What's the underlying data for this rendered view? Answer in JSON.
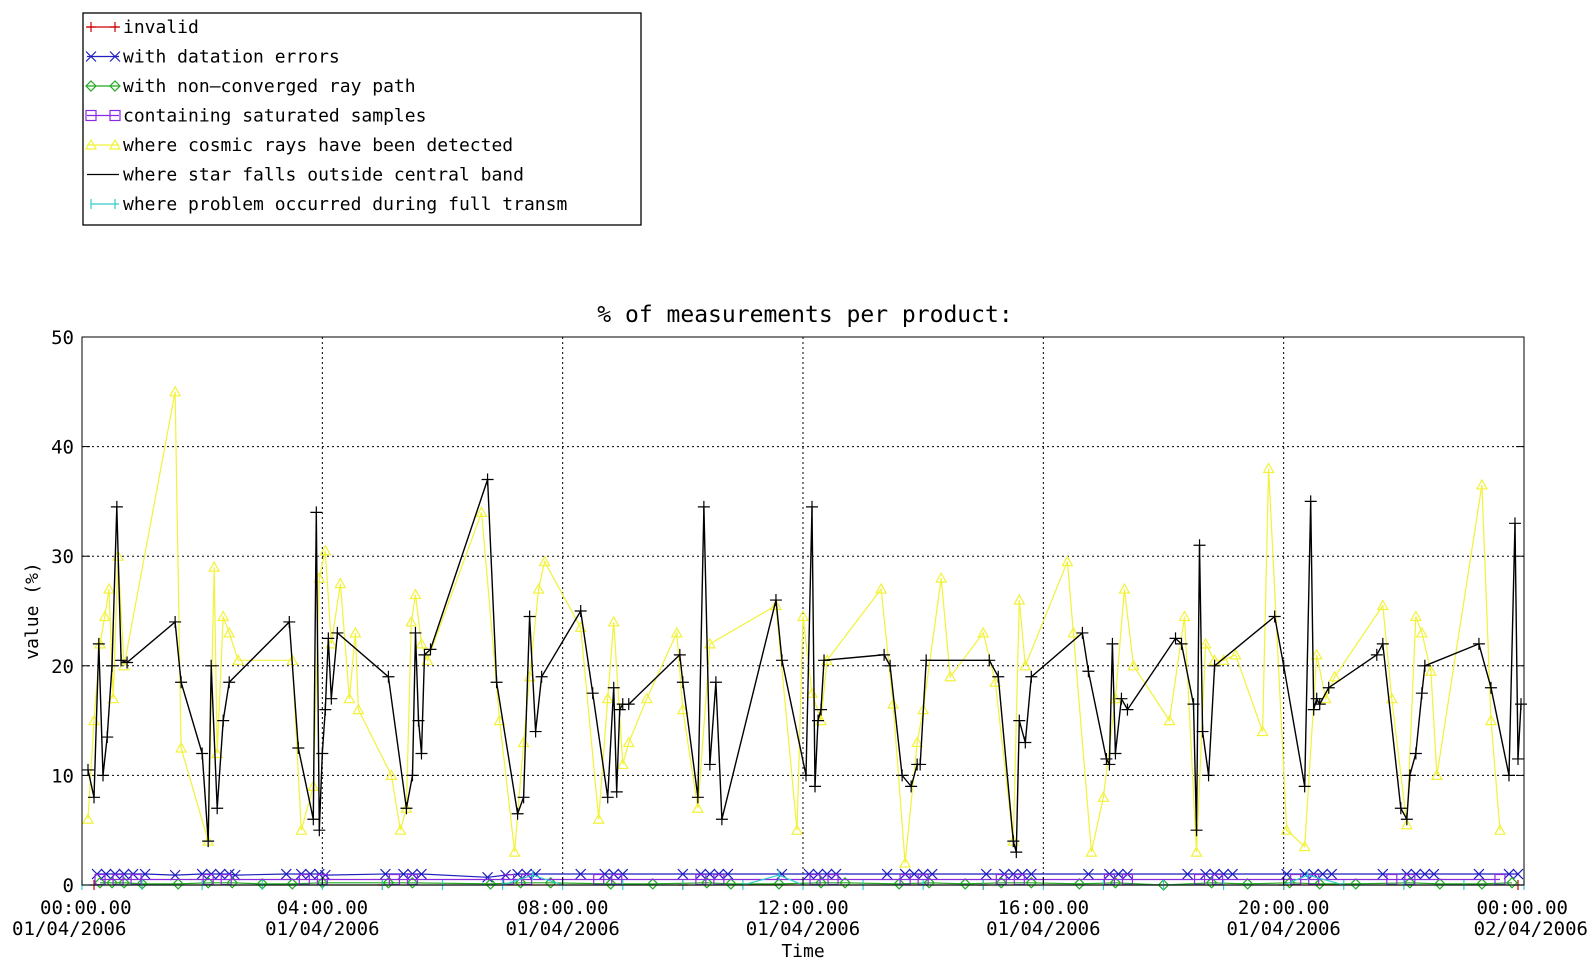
{
  "chart_data": {
    "type": "line",
    "title": "% of measurements per product:",
    "xlabel": "Time",
    "ylabel": "value (%)",
    "ylim": [
      0,
      50
    ],
    "xlim": [
      "01/04/2006 00:00:00",
      "02/04/2006 00:00:00"
    ],
    "x_units": "hours",
    "y_ticks": [
      0,
      10,
      20,
      30,
      40,
      50
    ],
    "x_ticks": [
      {
        "time": "00:00.00",
        "date": "01/04/2006"
      },
      {
        "time": "04:00.00",
        "date": "01/04/2006"
      },
      {
        "time": "08:00.00",
        "date": "01/04/2006"
      },
      {
        "time": "12:00.00",
        "date": "01/04/2006"
      },
      {
        "time": "16:00.00",
        "date": "01/04/2006"
      },
      {
        "time": "20:00.00",
        "date": "01/04/2006"
      },
      {
        "time": "00:00.00",
        "date": "02/04/2006"
      }
    ],
    "grid": {
      "vertical": "dotted",
      "horizontal": "dotted"
    },
    "legend_position": "top-left",
    "series": [
      {
        "name": "invalid",
        "color": "#cc0000",
        "marker": "plus",
        "x": [
          0.2,
          5.0,
          10.0,
          15.0,
          20.0,
          23.9
        ],
        "values": [
          0,
          0,
          0,
          0,
          0,
          0
        ]
      },
      {
        "name": "with datation errors",
        "color": "#1f1fbf",
        "marker": "x",
        "x": [
          0.25,
          0.4,
          0.55,
          0.7,
          0.85,
          1.05,
          1.55,
          2.0,
          2.15,
          2.3,
          2.45,
          2.55,
          3.4,
          3.65,
          3.8,
          3.95,
          4.05,
          5.05,
          5.35,
          5.5,
          5.65,
          6.75,
          7.05,
          7.25,
          7.4,
          7.55,
          8.3,
          8.7,
          8.85,
          9.0,
          10.0,
          10.3,
          10.45,
          10.6,
          10.75,
          11.65,
          12.1,
          12.25,
          12.4,
          12.55,
          13.4,
          13.7,
          13.85,
          14.0,
          14.15,
          15.05,
          15.35,
          15.5,
          15.65,
          15.8,
          16.75,
          17.1,
          17.25,
          17.4,
          18.4,
          18.7,
          18.85,
          19.0,
          19.15,
          20.05,
          20.35,
          20.5,
          20.65,
          20.8,
          21.65,
          22.05,
          22.2,
          22.35,
          22.5,
          23.25,
          23.75,
          23.9
        ],
        "values": [
          1,
          1,
          1,
          1,
          1,
          1,
          0.9,
          1,
          1,
          1,
          1,
          0.9,
          1,
          1,
          1,
          1,
          0.9,
          1,
          1,
          1,
          1,
          0.7,
          0.9,
          1,
          1,
          1,
          1,
          1,
          1,
          1,
          1,
          1,
          1,
          1,
          1,
          1,
          1,
          1,
          1,
          1,
          1,
          1,
          1,
          1,
          1,
          1,
          1,
          1,
          1,
          1,
          1,
          1,
          1,
          1,
          1,
          1,
          1,
          1,
          1,
          1,
          1,
          1,
          1,
          1,
          1,
          1,
          1,
          1,
          1,
          1,
          1,
          1
        ]
      },
      {
        "name": "with non–converged ray path",
        "color": "#22aa22",
        "marker": "diamond",
        "x": [
          0.3,
          0.5,
          0.7,
          1.0,
          1.6,
          2.1,
          2.5,
          3.0,
          3.5,
          4.0,
          5.1,
          5.5,
          6.8,
          7.3,
          7.8,
          8.8,
          9.5,
          10.4,
          10.8,
          11.6,
          12.3,
          12.7,
          13.6,
          14.1,
          14.7,
          15.3,
          15.8,
          16.6,
          17.2,
          18.0,
          18.8,
          19.4,
          20.1,
          20.6,
          21.2,
          22.1,
          22.6,
          23.3,
          23.8
        ],
        "values": [
          0.2,
          0.2,
          0.2,
          0.1,
          0.1,
          0.2,
          0.2,
          0.1,
          0.1,
          0.2,
          0.2,
          0.2,
          0.1,
          0.2,
          0.2,
          0.1,
          0.1,
          0.2,
          0.1,
          0.1,
          0.2,
          0.2,
          0.1,
          0.2,
          0.1,
          0.2,
          0.2,
          0.1,
          0.2,
          0,
          0.2,
          0.1,
          0.2,
          0.1,
          0.1,
          0.2,
          0.1,
          0.1,
          0.2
        ]
      },
      {
        "name": "containing saturated samples",
        "color": "#8a2be2",
        "marker": "square",
        "x": [
          0.3,
          0.6,
          0.9,
          2.1,
          2.4,
          3.7,
          4.0,
          5.2,
          5.5,
          7.1,
          7.4,
          8.6,
          8.9,
          10.3,
          10.6,
          12.2,
          12.5,
          13.7,
          14.0,
          15.3,
          15.6,
          17.1,
          17.4,
          18.6,
          18.9,
          20.2,
          20.5,
          21.8,
          22.1,
          23.6
        ],
        "values": [
          0.5,
          0.5,
          0.5,
          0.5,
          0.5,
          0.5,
          0.5,
          0.5,
          0.5,
          0.5,
          0.5,
          0.5,
          0.5,
          0.5,
          0.5,
          0.5,
          0.5,
          0.5,
          0.5,
          0.5,
          0.5,
          0.5,
          0.5,
          0.5,
          0.5,
          0.5,
          0.5,
          0.5,
          0.5,
          0.5
        ]
      },
      {
        "name": "where cosmic rays have been detected",
        "color": "#f2f23a",
        "marker": "triangle",
        "x": [
          0.1,
          0.2,
          0.3,
          0.38,
          0.45,
          0.52,
          0.6,
          0.7,
          1.55,
          1.65,
          2.1,
          2.2,
          2.25,
          2.35,
          2.45,
          2.6,
          3.5,
          3.65,
          3.85,
          3.95,
          4.05,
          4.15,
          4.3,
          4.45,
          4.55,
          4.6,
          5.15,
          5.3,
          5.4,
          5.48,
          5.55,
          5.65,
          5.75,
          6.65,
          6.95,
          7.2,
          7.35,
          7.45,
          7.6,
          7.7,
          8.3,
          8.6,
          8.75,
          8.85,
          9.0,
          9.1,
          9.4,
          9.9,
          10.0,
          10.25,
          10.45,
          11.55,
          11.9,
          12.0,
          12.15,
          12.3,
          12.4,
          13.3,
          13.5,
          13.7,
          13.9,
          14.0,
          14.3,
          14.45,
          15.0,
          15.2,
          15.5,
          15.6,
          15.7,
          16.4,
          16.5,
          16.8,
          17.0,
          17.2,
          17.35,
          17.5,
          18.1,
          18.35,
          18.55,
          18.7,
          18.85,
          19.0,
          19.2,
          19.65,
          19.75,
          20.05,
          20.35,
          20.55,
          20.7,
          20.85,
          21.65,
          21.8,
          22.05,
          22.2,
          22.3,
          22.45,
          22.55,
          23.3,
          23.45,
          23.6
        ],
        "values": [
          6,
          15,
          22,
          24.5,
          27,
          17,
          30,
          20,
          45,
          12.5,
          4,
          29,
          12,
          24.5,
          23,
          20.5,
          20.5,
          5,
          9,
          28,
          30.5,
          22,
          27.5,
          17,
          23,
          16,
          10,
          5,
          7,
          24,
          26.5,
          22,
          20.5,
          34,
          15,
          3,
          13,
          19,
          27,
          29.5,
          23.5,
          6,
          17,
          24,
          11,
          13,
          17,
          23,
          16,
          7,
          22,
          25.5,
          5,
          24.5,
          17.5,
          15,
          20.5,
          27,
          16.5,
          2,
          13,
          16,
          28,
          19,
          23,
          18.5,
          4,
          26,
          20,
          29.5,
          23,
          3,
          8,
          17,
          27,
          20,
          15,
          24.5,
          3,
          22,
          20.5,
          20.5,
          21,
          14,
          38,
          5,
          3.5,
          21,
          17,
          19,
          25.5,
          17,
          5.5,
          24.5,
          23,
          19.5,
          10,
          36.5,
          15,
          5
        ]
      },
      {
        "name": "where star falls outside central band",
        "color": "#000000",
        "marker": "plus",
        "x": [
          0.1,
          0.2,
          0.28,
          0.35,
          0.42,
          0.5,
          0.58,
          0.65,
          0.75,
          1.55,
          1.65,
          2.0,
          2.1,
          2.15,
          2.25,
          2.35,
          2.45,
          3.45,
          3.6,
          3.85,
          3.9,
          3.95,
          4.0,
          4.05,
          4.1,
          4.15,
          4.25,
          5.1,
          5.4,
          5.5,
          5.55,
          5.6,
          5.65,
          5.7,
          5.8,
          6.75,
          6.9,
          7.25,
          7.35,
          7.45,
          7.55,
          7.65,
          8.3,
          8.5,
          8.75,
          8.85,
          8.9,
          8.95,
          9.0,
          9.1,
          9.95,
          10.0,
          10.25,
          10.35,
          10.45,
          10.55,
          10.65,
          11.55,
          11.65,
          12.05,
          12.15,
          12.2,
          12.25,
          12.3,
          12.35,
          13.35,
          13.45,
          13.65,
          13.8,
          13.9,
          13.95,
          14.05,
          15.1,
          15.25,
          15.5,
          15.55,
          15.6,
          15.7,
          15.8,
          16.65,
          16.75,
          17.05,
          17.1,
          17.15,
          17.2,
          17.3,
          17.4,
          18.2,
          18.3,
          18.5,
          18.55,
          18.6,
          18.65,
          18.75,
          18.85,
          19.85,
          20.0,
          20.35,
          20.45,
          20.5,
          20.55,
          20.6,
          20.75,
          21.55,
          21.65,
          21.95,
          22.05,
          22.1,
          22.2,
          22.3,
          22.35,
          23.25,
          23.45,
          23.75,
          23.85,
          23.9,
          23.95
        ],
        "values": [
          10.5,
          8,
          22,
          10,
          13.5,
          20,
          34.5,
          20.5,
          20.3,
          24,
          18.5,
          12,
          4,
          20,
          7,
          15,
          18.5,
          24,
          12.5,
          6,
          34,
          5,
          12,
          16,
          22.5,
          17,
          23,
          19,
          7,
          10,
          23,
          15,
          12,
          21,
          21.5,
          37,
          18.5,
          6.5,
          8,
          24.5,
          14,
          19,
          25,
          17.5,
          8,
          18,
          8.5,
          16,
          16.5,
          16.5,
          21,
          18.5,
          8,
          34.5,
          11,
          18.5,
          6,
          26,
          20.5,
          10,
          34.5,
          9,
          15,
          16,
          20.5,
          21,
          20,
          10,
          9,
          11,
          11,
          20.5,
          20.5,
          19,
          4,
          3,
          15,
          13,
          19,
          23,
          19.5,
          11.5,
          11,
          22,
          12,
          17,
          16,
          22.5,
          22,
          16.5,
          5,
          31,
          14,
          10,
          20,
          24.5,
          20,
          9,
          35,
          16,
          17,
          16.5,
          18,
          21,
          22,
          7,
          6,
          10,
          12,
          17.5,
          20,
          22,
          18,
          10,
          33,
          11.5,
          16.5
        ]
      },
      {
        "name": "where problem occurred during full transm",
        "color": "#33cccc",
        "marker": "bar",
        "x": [
          0.0,
          1.0,
          2.0,
          3.0,
          4.0,
          5.0,
          6.0,
          7.0,
          7.5,
          8.0,
          9.0,
          10.0,
          11.0,
          11.6,
          12.0,
          13.0,
          14.0,
          15.0,
          16.0,
          17.0,
          18.0,
          19.0,
          20.0,
          20.4,
          21.0,
          22.0,
          23.0,
          24.0
        ],
        "values": [
          0,
          0,
          0,
          0,
          0,
          0,
          0,
          0,
          0.9,
          0,
          0,
          0,
          0,
          0.9,
          0,
          0,
          0,
          0,
          0,
          0,
          0,
          0,
          0,
          0.9,
          0,
          0,
          0,
          0
        ]
      }
    ]
  }
}
